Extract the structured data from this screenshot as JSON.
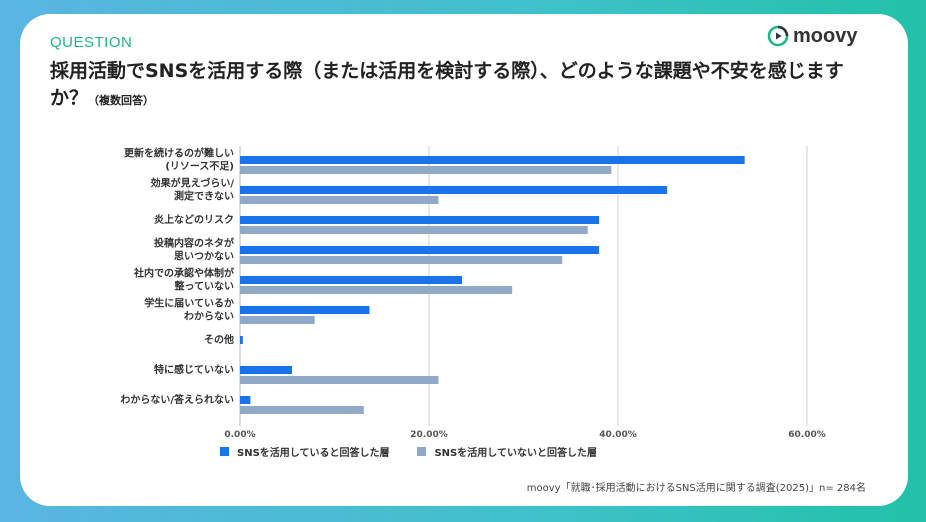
{
  "header": {
    "label": "QUESTION",
    "title_main": "採用活動でSNSを活用する際（または活用を検討する際）、どのような課題や不安を感じますか？",
    "title_sub": "（複数回答）"
  },
  "logo": {
    "text": "moovy",
    "icon": "play-circle-icon"
  },
  "source": "moovy「就職･採用活動におけるSNS活用に関する調査(2025)」n= 284名",
  "colors": {
    "series1": "#1a73e8",
    "series2": "#8fa9c7",
    "accent": "#1fb58a"
  },
  "chart_data": {
    "type": "bar",
    "orientation": "horizontal",
    "categories": [
      [
        "更新を続けるのが難しい",
        "(リソース不足)"
      ],
      [
        "効果が見えづらい/",
        "測定できない"
      ],
      [
        "炎上などのリスク"
      ],
      [
        "投稿内容のネタが",
        "思いつかない"
      ],
      [
        "社内での承認や体制が",
        "整っていない"
      ],
      [
        "学生に届いているか",
        "わからない"
      ],
      [
        "その他"
      ],
      [
        "特に感じていない"
      ],
      [
        "わからない/答えられない"
      ]
    ],
    "series": [
      {
        "name": "SNSを活用していると回答した層",
        "values": [
          53.4,
          45.2,
          38.0,
          38.0,
          23.5,
          13.7,
          0.3,
          5.5,
          1.1
        ]
      },
      {
        "name": "SNSを活用していないと回答した層",
        "values": [
          39.3,
          21.0,
          36.8,
          34.1,
          28.8,
          7.9,
          0.0,
          21.0,
          13.1
        ]
      }
    ],
    "xlim": [
      0,
      60
    ],
    "ticks": [
      "0.00%",
      "20.00%",
      "40.00%",
      "60.00%"
    ],
    "tick_values": [
      0,
      20,
      40,
      60
    ],
    "grid": true,
    "legend": "bottom"
  }
}
